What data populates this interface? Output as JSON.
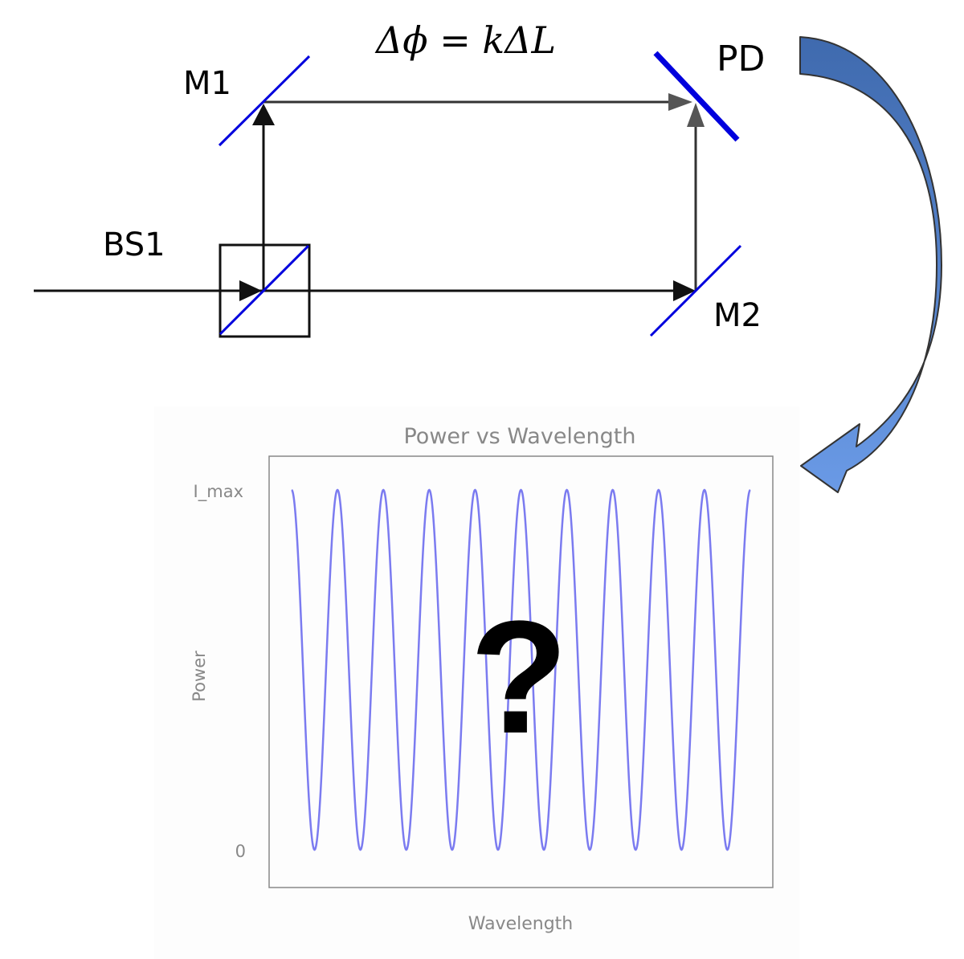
{
  "diagram": {
    "formula": "Δϕ = kΔL",
    "labels": {
      "m1": "M1",
      "m2": "M2",
      "bs1": "BS1",
      "pd": "PD"
    },
    "mirror_color": "#0000dd",
    "arrow_colors": {
      "fill": "#4c78be",
      "stroke": "#444444"
    }
  },
  "plot": {
    "title": "Power vs Wavelength",
    "xlabel": "Wavelength",
    "ylabel": "Power",
    "y_ticks": [
      "0",
      "I_max"
    ],
    "overlay": "?",
    "line_color": "#7b7bf0"
  },
  "chart_data": {
    "type": "line",
    "title": "Power vs Wavelength",
    "xlabel": "Wavelength",
    "ylabel": "Power",
    "ytick_labels": [
      "0",
      "I_max"
    ],
    "ylim": [
      0,
      1
    ],
    "xlim": [
      0,
      10
    ],
    "series": [
      {
        "function": "0.5 + 0.5*cos(2*pi*x)",
        "cycles": 10,
        "min": 0,
        "max": 1
      }
    ],
    "grid": false,
    "legend": "none"
  }
}
